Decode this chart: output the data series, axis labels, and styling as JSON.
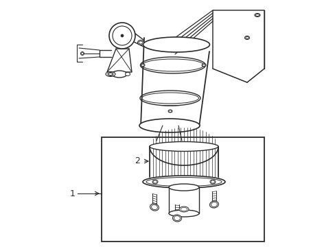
{
  "background_color": "#ffffff",
  "line_color": "#2a2a2a",
  "label_1": "1",
  "label_2": "2",
  "fig_width": 4.89,
  "fig_height": 3.6,
  "dpi": 100
}
